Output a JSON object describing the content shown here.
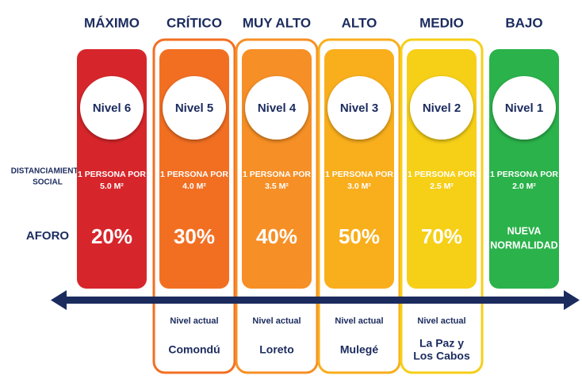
{
  "row_labels": {
    "distance": [
      "DISTANCIAMIENTO",
      "SOCIAL"
    ],
    "capacity": "AFORO"
  },
  "columns": [
    {
      "header": "MÁXIMO",
      "level": "Nivel 6",
      "distance": [
        "1 PERSONA POR",
        "5.0 M²"
      ],
      "capacity": [
        "20%"
      ],
      "color": "#d7262b"
    },
    {
      "header": "CRÍTICO",
      "level": "Nivel 5",
      "distance": [
        "1 PERSONA POR",
        "4.0 M²"
      ],
      "capacity": [
        "30%"
      ],
      "color": "#f26f22",
      "current": {
        "label": "Nivel actual",
        "place": [
          "Comondú"
        ]
      }
    },
    {
      "header": "MUY ALTO",
      "level": "Nivel 4",
      "distance": [
        "1 PERSONA POR",
        "3.5 M²"
      ],
      "capacity": [
        "40%"
      ],
      "color": "#f68f25",
      "current": {
        "label": "Nivel actual",
        "place": [
          "Loreto"
        ]
      }
    },
    {
      "header": "ALTO",
      "level": "Nivel 3",
      "distance": [
        "1 PERSONA POR",
        "3.0 M²"
      ],
      "capacity": [
        "50%"
      ],
      "color": "#f9ae1c",
      "current": {
        "label": "Nivel actual",
        "place": [
          "Mulegé"
        ]
      }
    },
    {
      "header": "MEDIO",
      "level": "Nivel 2",
      "distance": [
        "1 PERSONA POR",
        "2.5 M²"
      ],
      "capacity": [
        "70%"
      ],
      "color": "#f6cf17",
      "current": {
        "label": "Nivel actual",
        "place": [
          "La Paz y",
          "Los Cabos"
        ]
      }
    },
    {
      "header": "BAJO",
      "level": "Nivel 1",
      "distance": [
        "1 PERSONA POR",
        "2.0 M²"
      ],
      "capacity": [
        "NUEVA",
        "NORMALIDAD"
      ],
      "color": "#2bb24b"
    }
  ]
}
